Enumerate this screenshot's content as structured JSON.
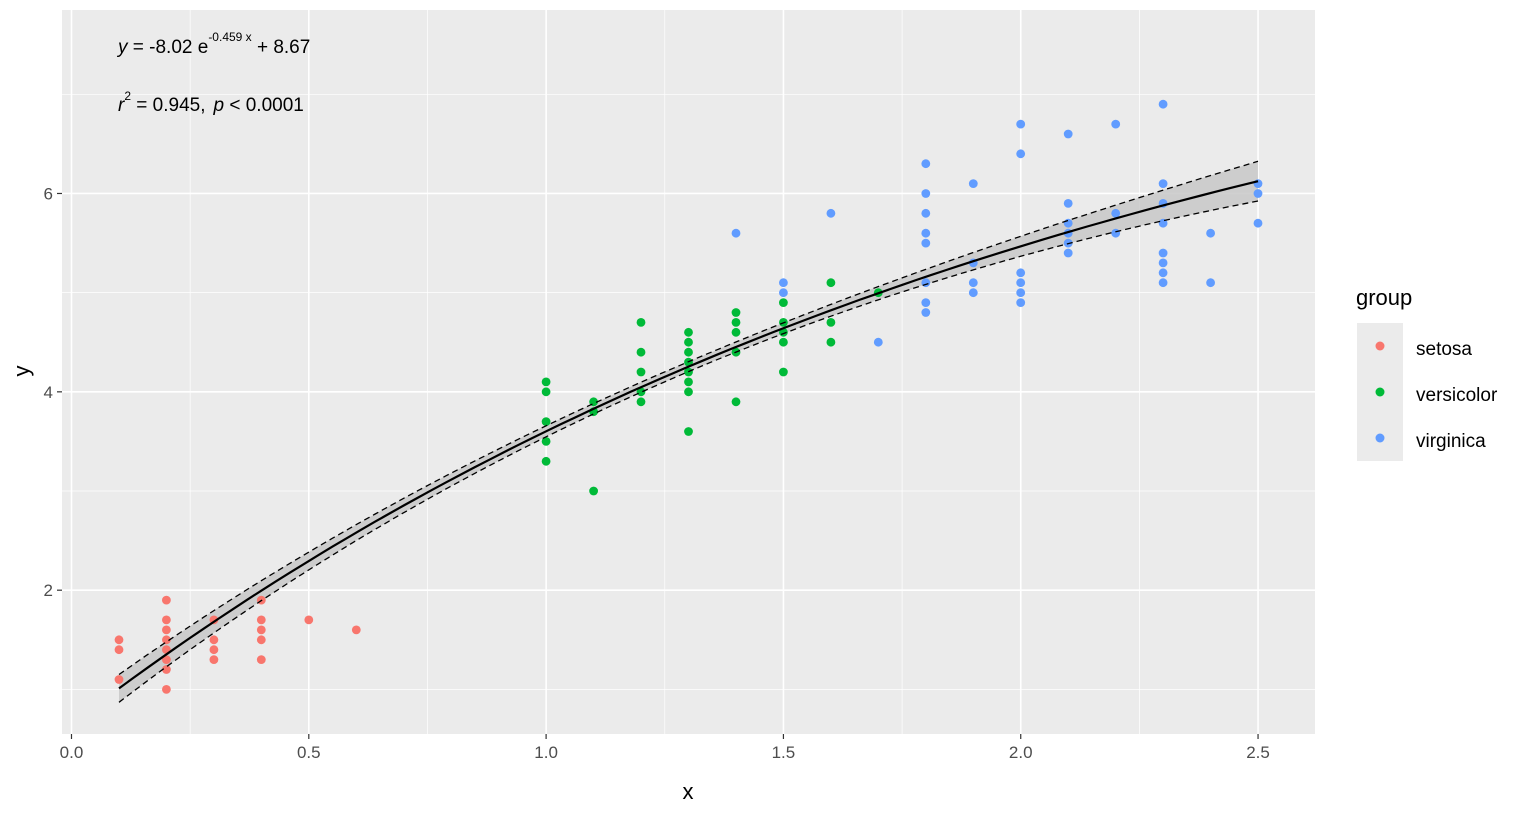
{
  "chart_data": {
    "type": "scatter",
    "title": "",
    "xlabel": "x",
    "ylabel": "y",
    "xlim": [
      -0.02,
      2.62
    ],
    "ylim": [
      0.55,
      7.85
    ],
    "xticks": [
      0.0,
      0.5,
      1.0,
      1.5,
      2.0,
      2.5
    ],
    "xtick_labels": [
      "0.0",
      "0.5",
      "1.0",
      "1.5",
      "2.0",
      "2.5"
    ],
    "yticks": [
      2,
      4,
      6
    ],
    "ytick_labels": [
      "2",
      "4",
      "6"
    ],
    "grid": true,
    "legend": {
      "title": "group",
      "position": "right",
      "entries": [
        "setosa",
        "versicolor",
        "virginica"
      ]
    },
    "colors": {
      "panel": "#ebebeb",
      "grid": "#ffffff",
      "setosa": "#f8766d",
      "versicolor": "#00ba38",
      "virginica": "#619cff",
      "fit": "#000000",
      "band": "#c8c8c8"
    },
    "fit": {
      "model": "y = -8.02 * exp(-0.459 * x) + 8.67",
      "a": -8.02,
      "b": -0.459,
      "c": 8.67,
      "x_from": 0.1,
      "x_to": 2.5,
      "band_halfwidth": [
        0.14,
        0.05,
        0.2
      ]
    },
    "annotation": {
      "line1": {
        "y": "y",
        "eq": " = -8.02 e",
        "exponent": "-0.459 x",
        "tail": " + 8.67"
      },
      "line2": {
        "r": "r",
        "r_sup": "2",
        "r_val": " = 0.945,",
        "p": "p",
        "p_val": " < 0.0001"
      }
    },
    "series": [
      {
        "name": "setosa",
        "points": [
          [
            0.1,
            1.5
          ],
          [
            0.1,
            1.4
          ],
          [
            0.1,
            1.1
          ],
          [
            0.2,
            1.9
          ],
          [
            0.2,
            1.7
          ],
          [
            0.2,
            1.6
          ],
          [
            0.2,
            1.5
          ],
          [
            0.2,
            1.4
          ],
          [
            0.2,
            1.3
          ],
          [
            0.2,
            1.2
          ],
          [
            0.2,
            1.0
          ],
          [
            0.3,
            1.7
          ],
          [
            0.3,
            1.5
          ],
          [
            0.3,
            1.4
          ],
          [
            0.3,
            1.3
          ],
          [
            0.4,
            1.9
          ],
          [
            0.4,
            1.7
          ],
          [
            0.4,
            1.6
          ],
          [
            0.4,
            1.5
          ],
          [
            0.4,
            1.3
          ],
          [
            0.5,
            1.7
          ],
          [
            0.6,
            1.6
          ]
        ]
      },
      {
        "name": "versicolor",
        "points": [
          [
            1.0,
            4.1
          ],
          [
            1.0,
            4.0
          ],
          [
            1.0,
            3.7
          ],
          [
            1.0,
            3.5
          ],
          [
            1.0,
            3.3
          ],
          [
            1.1,
            3.9
          ],
          [
            1.1,
            3.8
          ],
          [
            1.1,
            3.0
          ],
          [
            1.2,
            4.7
          ],
          [
            1.2,
            4.4
          ],
          [
            1.2,
            4.2
          ],
          [
            1.2,
            4.0
          ],
          [
            1.2,
            3.9
          ],
          [
            1.3,
            4.6
          ],
          [
            1.3,
            4.5
          ],
          [
            1.3,
            4.4
          ],
          [
            1.3,
            4.3
          ],
          [
            1.3,
            4.2
          ],
          [
            1.3,
            4.1
          ],
          [
            1.3,
            4.0
          ],
          [
            1.3,
            3.6
          ],
          [
            1.4,
            4.8
          ],
          [
            1.4,
            4.7
          ],
          [
            1.4,
            4.6
          ],
          [
            1.4,
            4.4
          ],
          [
            1.4,
            3.9
          ],
          [
            1.5,
            4.9
          ],
          [
            1.5,
            4.7
          ],
          [
            1.5,
            4.6
          ],
          [
            1.5,
            4.5
          ],
          [
            1.5,
            4.2
          ],
          [
            1.6,
            5.1
          ],
          [
            1.6,
            4.7
          ],
          [
            1.6,
            4.5
          ],
          [
            1.7,
            5.0
          ]
        ]
      },
      {
        "name": "virginica",
        "points": [
          [
            1.4,
            5.6
          ],
          [
            1.5,
            5.1
          ],
          [
            1.5,
            5.0
          ],
          [
            1.6,
            5.8
          ],
          [
            1.7,
            4.5
          ],
          [
            1.8,
            6.3
          ],
          [
            1.8,
            6.0
          ],
          [
            1.8,
            5.8
          ],
          [
            1.8,
            5.6
          ],
          [
            1.8,
            5.5
          ],
          [
            1.8,
            5.1
          ],
          [
            1.8,
            4.9
          ],
          [
            1.8,
            4.8
          ],
          [
            1.9,
            6.1
          ],
          [
            1.9,
            5.3
          ],
          [
            1.9,
            5.1
          ],
          [
            1.9,
            5.0
          ],
          [
            2.0,
            6.7
          ],
          [
            2.0,
            6.4
          ],
          [
            2.0,
            5.2
          ],
          [
            2.0,
            5.1
          ],
          [
            2.0,
            5.0
          ],
          [
            2.0,
            4.9
          ],
          [
            2.1,
            6.6
          ],
          [
            2.1,
            5.9
          ],
          [
            2.1,
            5.7
          ],
          [
            2.1,
            5.6
          ],
          [
            2.1,
            5.5
          ],
          [
            2.1,
            5.4
          ],
          [
            2.2,
            6.7
          ],
          [
            2.2,
            5.8
          ],
          [
            2.2,
            5.6
          ],
          [
            2.3,
            6.9
          ],
          [
            2.3,
            6.1
          ],
          [
            2.3,
            5.9
          ],
          [
            2.3,
            5.7
          ],
          [
            2.3,
            5.4
          ],
          [
            2.3,
            5.3
          ],
          [
            2.3,
            5.2
          ],
          [
            2.3,
            5.1
          ],
          [
            2.4,
            5.6
          ],
          [
            2.4,
            5.1
          ],
          [
            2.5,
            6.1
          ],
          [
            2.5,
            6.0
          ],
          [
            2.5,
            5.7
          ]
        ]
      }
    ]
  }
}
